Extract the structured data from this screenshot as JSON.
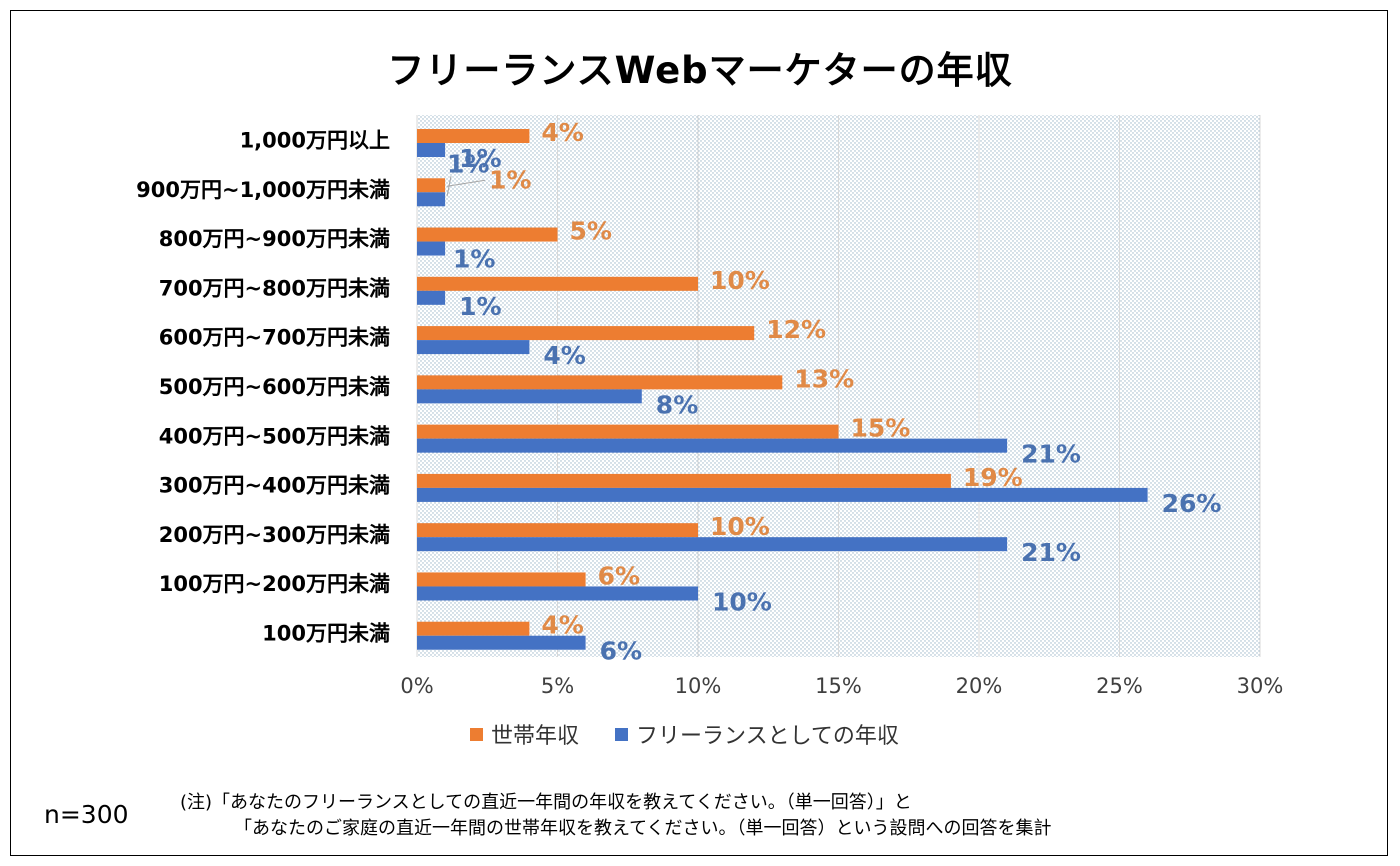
{
  "title": "フリーランスWebマーケターの年収",
  "legend": {
    "household": "世帯年収",
    "freelance": "フリーランスとしての年収"
  },
  "sample_size": "n=300",
  "note": {
    "line1": "(注)「あなたのフリーランスとしての直近一年間の年収を教えてください。（単一回答）」と",
    "line2": "「あなたのご家庭の直近一年間の世帯年収を教えてください。（単一回答）という設問への回答を集計"
  },
  "colors": {
    "household": "#ED7D31",
    "freelance": "#4472C4",
    "household_label": "#E08A47",
    "freelance_label": "#4A72B0",
    "grid": "#D9D9D9",
    "dots": "#9AB4C8"
  },
  "chart_data": {
    "type": "bar",
    "orientation": "horizontal",
    "title": "フリーランスWebマーケターの年収",
    "categories": [
      "1,000万円以上",
      "900万円~1,000万円未満",
      "800万円~900万円未満",
      "700万円~800万円未満",
      "600万円~700万円未満",
      "500万円~600万円未満",
      "400万円~500万円未満",
      "300万円~400万円未満",
      "200万円~300万円未満",
      "100万円~200万円未満",
      "100万円未満"
    ],
    "series": [
      {
        "name": "世帯年収",
        "values": [
          4,
          1,
          5,
          10,
          12,
          13,
          15,
          19,
          10,
          6,
          4
        ],
        "labels": [
          "4%",
          "1%",
          "5%",
          "10%",
          "12%",
          "13%",
          "15%",
          "19%",
          "10%",
          "6%",
          "4%"
        ]
      },
      {
        "name": "フリーランスとしての年収",
        "values": [
          1,
          1,
          1,
          1,
          4,
          8,
          21,
          26,
          21,
          10,
          6
        ],
        "labels": [
          "1%",
          "1%",
          "1%",
          "1%",
          "4%",
          "8%",
          "21%",
          "26%",
          "21%",
          "10%",
          "6%"
        ]
      }
    ],
    "xlim": [
      0,
      30
    ],
    "xticks": [
      "0%",
      "5%",
      "10%",
      "15%",
      "20%",
      "25%",
      "30%"
    ],
    "xtick_values": [
      0,
      5,
      10,
      15,
      20,
      25,
      30
    ],
    "unit": "%",
    "grid": true,
    "legend_position": "bottom"
  }
}
